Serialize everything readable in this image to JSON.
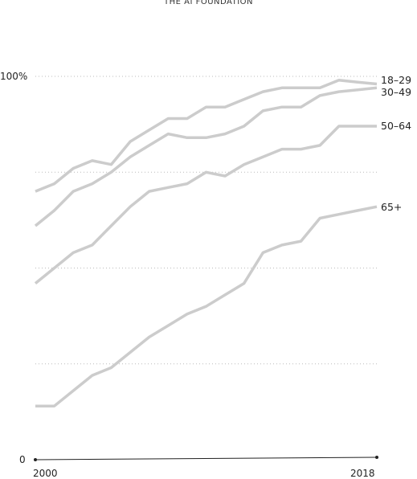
{
  "header": {
    "title": "THE AI FOUNDATION"
  },
  "chart_data": {
    "type": "line",
    "title": "",
    "xlabel": "",
    "ylabel": "",
    "xlim": [
      2000,
      2018
    ],
    "ylim": [
      0,
      100
    ],
    "y_tick_labels": [
      "0",
      "100%"
    ],
    "x_tick_labels": [
      "2000",
      "2018"
    ],
    "grid": "dotted horizontal lines at 25, 50, 75, 100",
    "legend": "labels at right end of each line",
    "colors": {
      "line": "#cccccc",
      "axis": "#222222",
      "grid": "#bbbbbb"
    },
    "x": [
      2000,
      2001,
      2002,
      2003,
      2004,
      2005,
      2006,
      2007,
      2008,
      2009,
      2010,
      2011,
      2012,
      2013,
      2014,
      2015,
      2016,
      2017,
      2018
    ],
    "series": [
      {
        "name": "18–29",
        "values": [
          70,
          72,
          76,
          78,
          77,
          83,
          86,
          89,
          89,
          92,
          92,
          94,
          96,
          97,
          97,
          97,
          99,
          98.5,
          98
        ]
      },
      {
        "name": "30–49",
        "values": [
          61,
          65,
          70,
          72,
          75,
          79,
          82,
          85,
          84,
          84,
          85,
          87,
          91,
          92,
          92,
          95,
          96,
          96.5,
          97
        ]
      },
      {
        "name": "50–64",
        "values": [
          46,
          50,
          54,
          56,
          61,
          66,
          70,
          71,
          72,
          75,
          74,
          77,
          79,
          81,
          81,
          82,
          87,
          87,
          87
        ]
      },
      {
        "name": "65+",
        "values": [
          14,
          14,
          18,
          22,
          24,
          28,
          32,
          35,
          38,
          40,
          43,
          46,
          54,
          56,
          57,
          63,
          64,
          65,
          66
        ]
      }
    ]
  }
}
